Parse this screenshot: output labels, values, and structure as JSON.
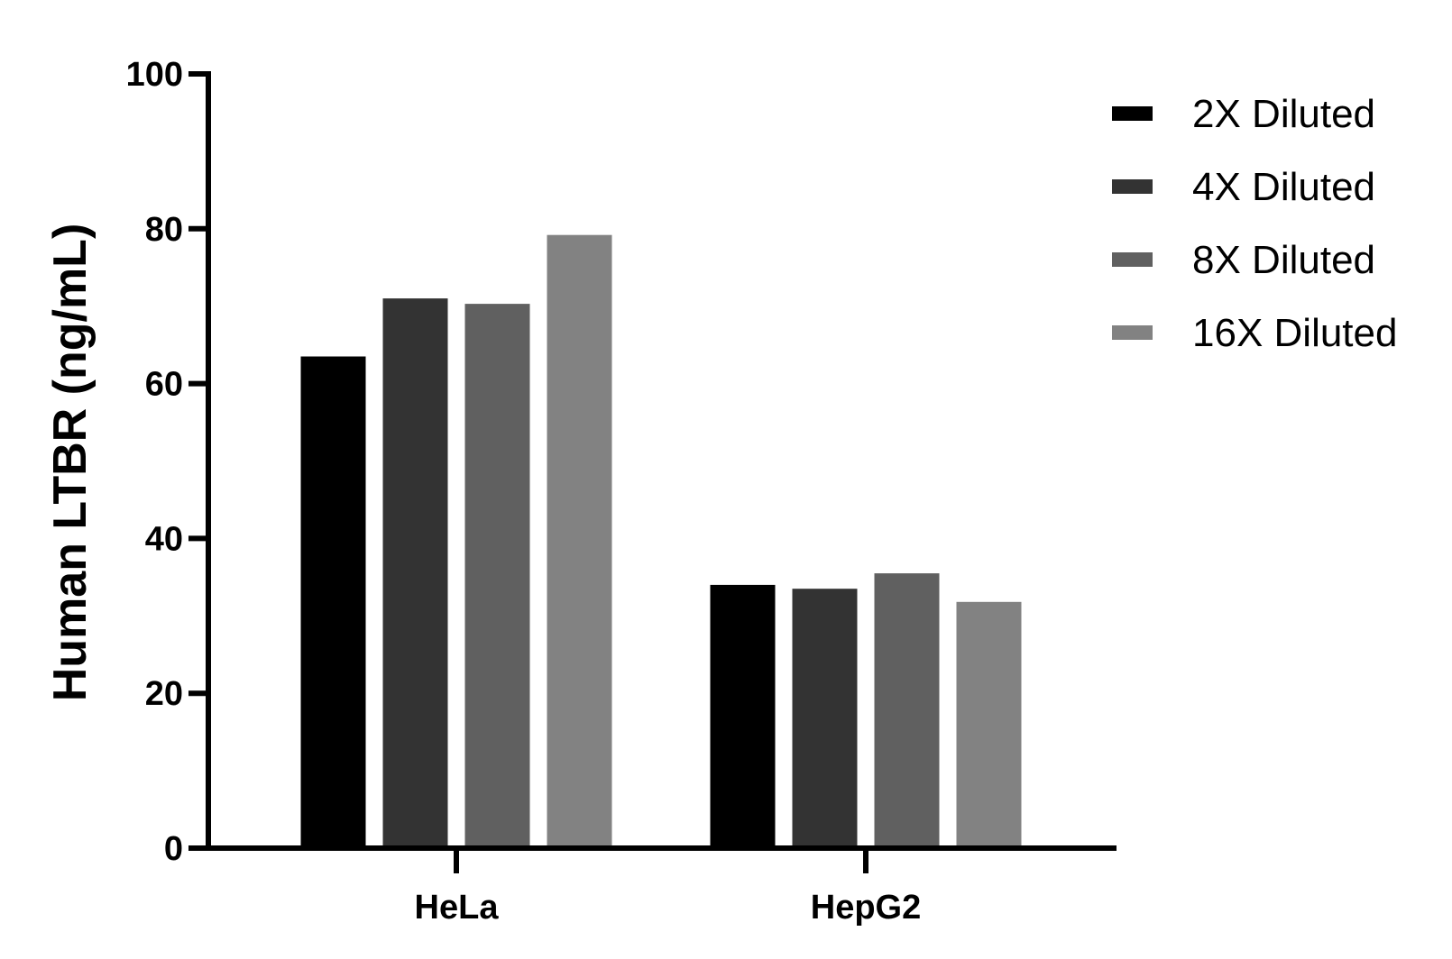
{
  "chart_data": {
    "type": "bar",
    "title": "",
    "xlabel": "",
    "ylabel": "Human LTBR (ng/mL)",
    "ylim": [
      0,
      100
    ],
    "yticks": [
      "0",
      "20",
      "40",
      "60",
      "80",
      "100"
    ],
    "categories": [
      "HeLa",
      "HepG2"
    ],
    "series": [
      {
        "name": "2X Diluted",
        "color": "#000000",
        "values": [
          63.5,
          34.0
        ]
      },
      {
        "name": "4X Diluted",
        "color": "#333333",
        "values": [
          71.0,
          33.5
        ]
      },
      {
        "name": "8X Diluted",
        "color": "#606060",
        "values": [
          70.3,
          35.5
        ]
      },
      {
        "name": "16X Diluted",
        "color": "#828282",
        "values": [
          79.2,
          31.8
        ]
      }
    ],
    "grid": false,
    "legend_position": "top-right"
  }
}
